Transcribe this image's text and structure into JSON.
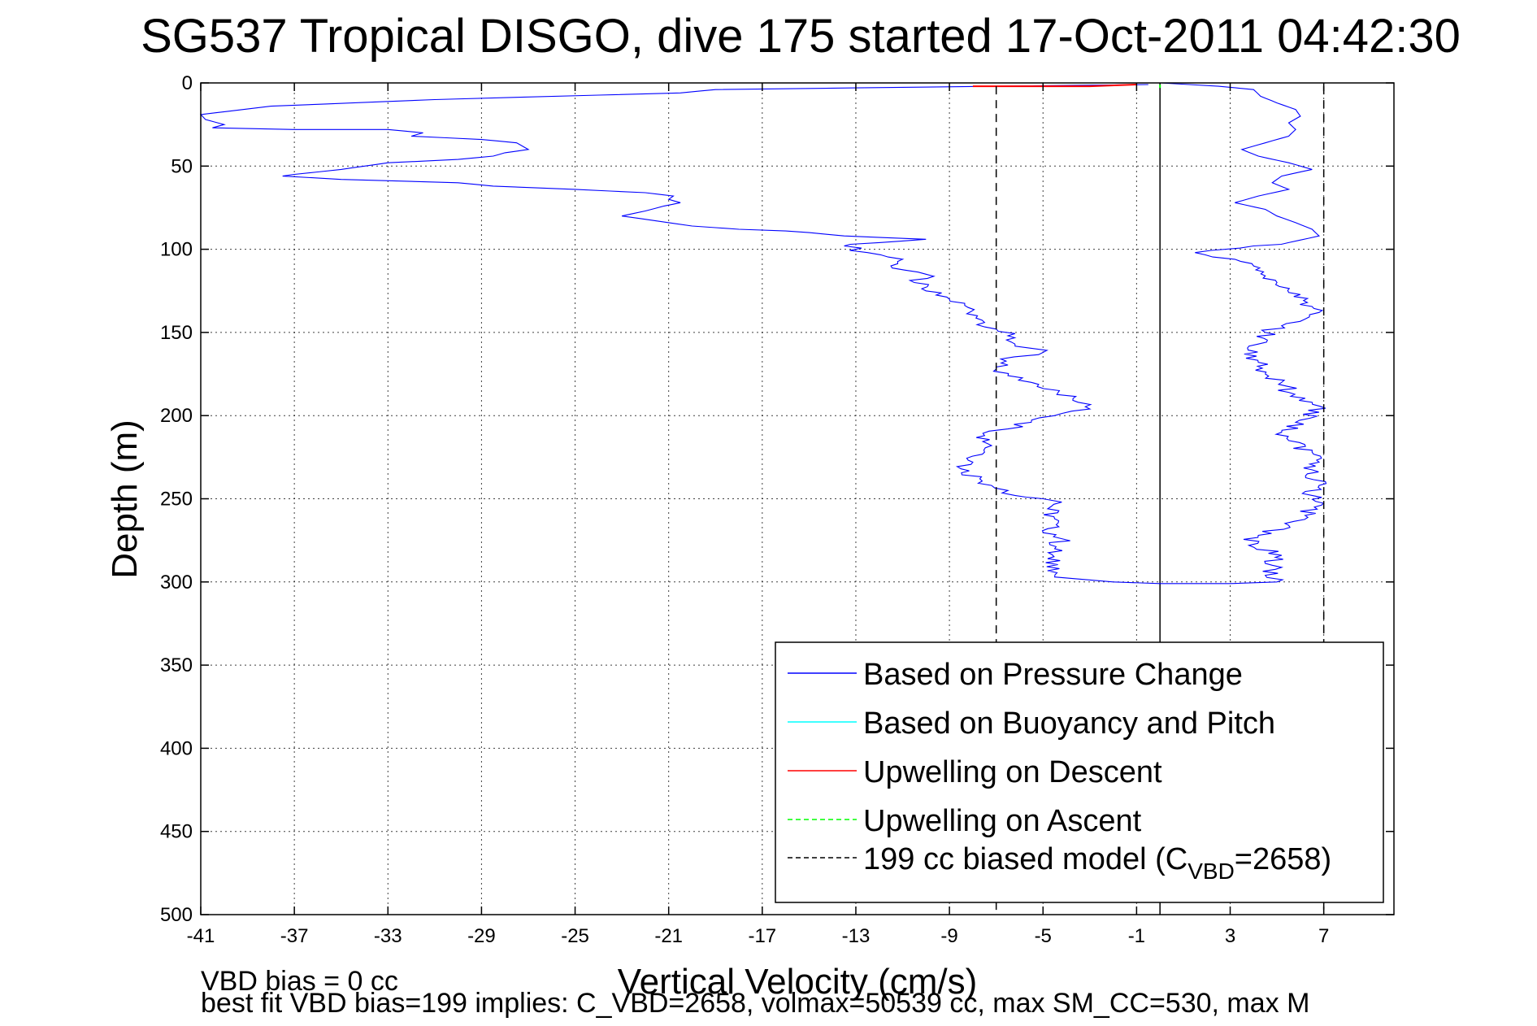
{
  "chart_data": {
    "type": "line",
    "title": "SG537 Tropical DISGO, dive 175 started 17-Oct-2011 04:42:30",
    "xlabel": "Vertical Velocity (cm/s)",
    "ylabel": "Depth (m)",
    "xlim": [
      -41,
      10
    ],
    "ylim": [
      500,
      0
    ],
    "x_ticks": [
      -41,
      -37,
      -33,
      -29,
      -25,
      -21,
      -17,
      -13,
      -9,
      -5,
      -1,
      3,
      7
    ],
    "y_ticks": [
      0,
      50,
      100,
      150,
      200,
      250,
      300,
      350,
      400,
      450,
      500
    ],
    "grid": true,
    "legend_position": "bottom-right",
    "series": [
      {
        "name": "Based on Pressure Change",
        "color": "#0000ff",
        "style": "solid",
        "points": [
          [
            -0.5,
            1
          ],
          [
            -7,
            2
          ],
          [
            -19,
            4
          ],
          [
            -20.5,
            6
          ],
          [
            -31,
            10
          ],
          [
            -38,
            14
          ],
          [
            -39.8,
            17
          ],
          [
            -41,
            19
          ],
          [
            -40.8,
            22
          ],
          [
            -40,
            25
          ],
          [
            -40.5,
            27
          ],
          [
            -37,
            28
          ],
          [
            -33,
            28
          ],
          [
            -31.5,
            30
          ],
          [
            -32,
            32
          ],
          [
            -29,
            34
          ],
          [
            -27.5,
            36
          ],
          [
            -27,
            40
          ],
          [
            -28,
            42
          ],
          [
            -28.5,
            44
          ],
          [
            -30,
            46
          ],
          [
            -33,
            48
          ],
          [
            -34,
            50
          ],
          [
            -35,
            52
          ],
          [
            -37,
            55
          ],
          [
            -37.5,
            56
          ],
          [
            -35,
            58
          ],
          [
            -30,
            60
          ],
          [
            -28.5,
            62
          ],
          [
            -25,
            64
          ],
          [
            -22,
            66
          ],
          [
            -20.8,
            68
          ],
          [
            -21,
            70
          ],
          [
            -20.5,
            72
          ],
          [
            -21.2,
            74
          ],
          [
            -22,
            77
          ],
          [
            -23,
            80
          ],
          [
            -21.5,
            83
          ],
          [
            -20,
            86
          ],
          [
            -18,
            88
          ],
          [
            -16,
            89
          ],
          [
            -15,
            90
          ],
          [
            -13.5,
            92
          ],
          [
            -10,
            94
          ],
          [
            -12,
            96
          ],
          [
            -13.5,
            98
          ],
          [
            -12.5,
            102
          ],
          [
            -11,
            106
          ],
          [
            -11.5,
            110
          ],
          [
            -10,
            115
          ],
          [
            -10.5,
            120
          ],
          [
            -10,
            125
          ],
          [
            -9,
            130
          ],
          [
            -8.2,
            135
          ],
          [
            -7.8,
            140
          ],
          [
            -7.5,
            144
          ],
          [
            -7,
            148
          ],
          [
            -6.5,
            152
          ],
          [
            -6.2,
            157
          ],
          [
            -5,
            162
          ],
          [
            -6.8,
            166
          ],
          [
            -7,
            172
          ],
          [
            -6.5,
            176
          ],
          [
            -5.5,
            180
          ],
          [
            -4.3,
            185
          ],
          [
            -3.5,
            192
          ],
          [
            -3,
            196
          ],
          [
            -4.5,
            200
          ],
          [
            -5.5,
            204
          ],
          [
            -6.5,
            208
          ],
          [
            -7.5,
            212
          ],
          [
            -7.2,
            218
          ],
          [
            -7.5,
            222
          ],
          [
            -8,
            228
          ],
          [
            -8.5,
            232
          ],
          [
            -7.7,
            238
          ],
          [
            -7.2,
            242
          ],
          [
            -6.5,
            245
          ],
          [
            -6.2,
            248
          ],
          [
            -5,
            250
          ],
          [
            -4.2,
            252
          ],
          [
            -4.8,
            256
          ],
          [
            -4.5,
            262
          ],
          [
            -4.8,
            268
          ],
          [
            -4.2,
            274
          ],
          [
            -4.5,
            280
          ],
          [
            -4.8,
            286
          ],
          [
            -4.3,
            292
          ],
          [
            -4.5,
            297
          ],
          [
            -2,
            300
          ],
          [
            0,
            301
          ],
          [
            3,
            301
          ],
          [
            5,
            300
          ],
          [
            4.5,
            296
          ],
          [
            4.8,
            290
          ],
          [
            5.2,
            284
          ],
          [
            3.8,
            278
          ],
          [
            4.2,
            272
          ],
          [
            5.5,
            266
          ],
          [
            6.2,
            260
          ],
          [
            6.6,
            255
          ],
          [
            6.5,
            248
          ],
          [
            6.8,
            242
          ],
          [
            6.3,
            235
          ],
          [
            6.8,
            228
          ],
          [
            6.5,
            222
          ],
          [
            5.5,
            215
          ],
          [
            5.2,
            210
          ],
          [
            5.8,
            204
          ],
          [
            6.8,
            198
          ],
          [
            6.5,
            192
          ],
          [
            5.5,
            186
          ],
          [
            5.2,
            180
          ],
          [
            4.5,
            175
          ],
          [
            4.2,
            168
          ],
          [
            3.6,
            163
          ],
          [
            4.2,
            157
          ],
          [
            4.5,
            150
          ],
          [
            5.2,
            146
          ],
          [
            6.2,
            142
          ],
          [
            6.8,
            138
          ],
          [
            6.3,
            132
          ],
          [
            5.5,
            126
          ],
          [
            5,
            120
          ],
          [
            4.5,
            116
          ],
          [
            4,
            110
          ],
          [
            3.2,
            106
          ],
          [
            1.5,
            102
          ],
          [
            4,
            98
          ],
          [
            5.5,
            96
          ],
          [
            6.8,
            92
          ],
          [
            6.5,
            88
          ],
          [
            5.8,
            84
          ],
          [
            5,
            80
          ],
          [
            4.5,
            76
          ],
          [
            3.2,
            72
          ],
          [
            4.2,
            68
          ],
          [
            5.5,
            64
          ],
          [
            4.8,
            60
          ],
          [
            5.2,
            56
          ],
          [
            6.5,
            52
          ],
          [
            5.5,
            48
          ],
          [
            4.2,
            44
          ],
          [
            3.5,
            40
          ],
          [
            4.5,
            36
          ],
          [
            5.5,
            32
          ],
          [
            5.8,
            28
          ],
          [
            5.5,
            24
          ],
          [
            6,
            20
          ],
          [
            5.8,
            16
          ],
          [
            5,
            12
          ],
          [
            4.3,
            8
          ],
          [
            4,
            4
          ],
          [
            2.5,
            2
          ],
          [
            0,
            0
          ]
        ]
      },
      {
        "name": "Based on Buoyancy and Pitch",
        "color": "#00ffff",
        "style": "solid",
        "points": []
      },
      {
        "name": "Upwelling on Descent",
        "color": "#ff0000",
        "style": "solid",
        "points": [
          [
            -8,
            2
          ],
          [
            -5.5,
            2
          ],
          [
            -3,
            2
          ],
          [
            -1,
            1
          ]
        ]
      },
      {
        "name": "Upwelling on Ascent",
        "color": "#00ff00",
        "style": "dashed",
        "points": [
          [
            0,
            1
          ],
          [
            0,
            3
          ]
        ]
      },
      {
        "name": "199 cc biased model (CVBD=2658)",
        "color": "#000000",
        "style": "dashed",
        "points": [
          [
            -7,
            2
          ],
          [
            -7,
            500
          ],
          [
            7,
            2
          ],
          [
            7,
            500
          ]
        ]
      }
    ],
    "reference_line": {
      "x": 0,
      "color": "#000000"
    },
    "legend": {
      "entries": [
        {
          "label": "Based on Pressure Change",
          "color": "#0000ff",
          "dash": false
        },
        {
          "label": "Based on Buoyancy and Pitch",
          "color": "#00ffff",
          "dash": false
        },
        {
          "label": "Upwelling on Descent",
          "color": "#ff0000",
          "dash": false
        },
        {
          "label": "Upwelling on Ascent",
          "color": "#00ff00",
          "dash": true
        },
        {
          "label_pre": "199 cc biased model (C",
          "label_sub": "VBD",
          "label_post": "=2658)",
          "color": "#000000",
          "dash": true
        }
      ]
    },
    "annotations": [
      "VBD bias = 0 cc",
      "best fit VBD bias=199 implies: C_VBD=2658, volmax=50539 cc, max SM_CC=530, max M"
    ]
  }
}
